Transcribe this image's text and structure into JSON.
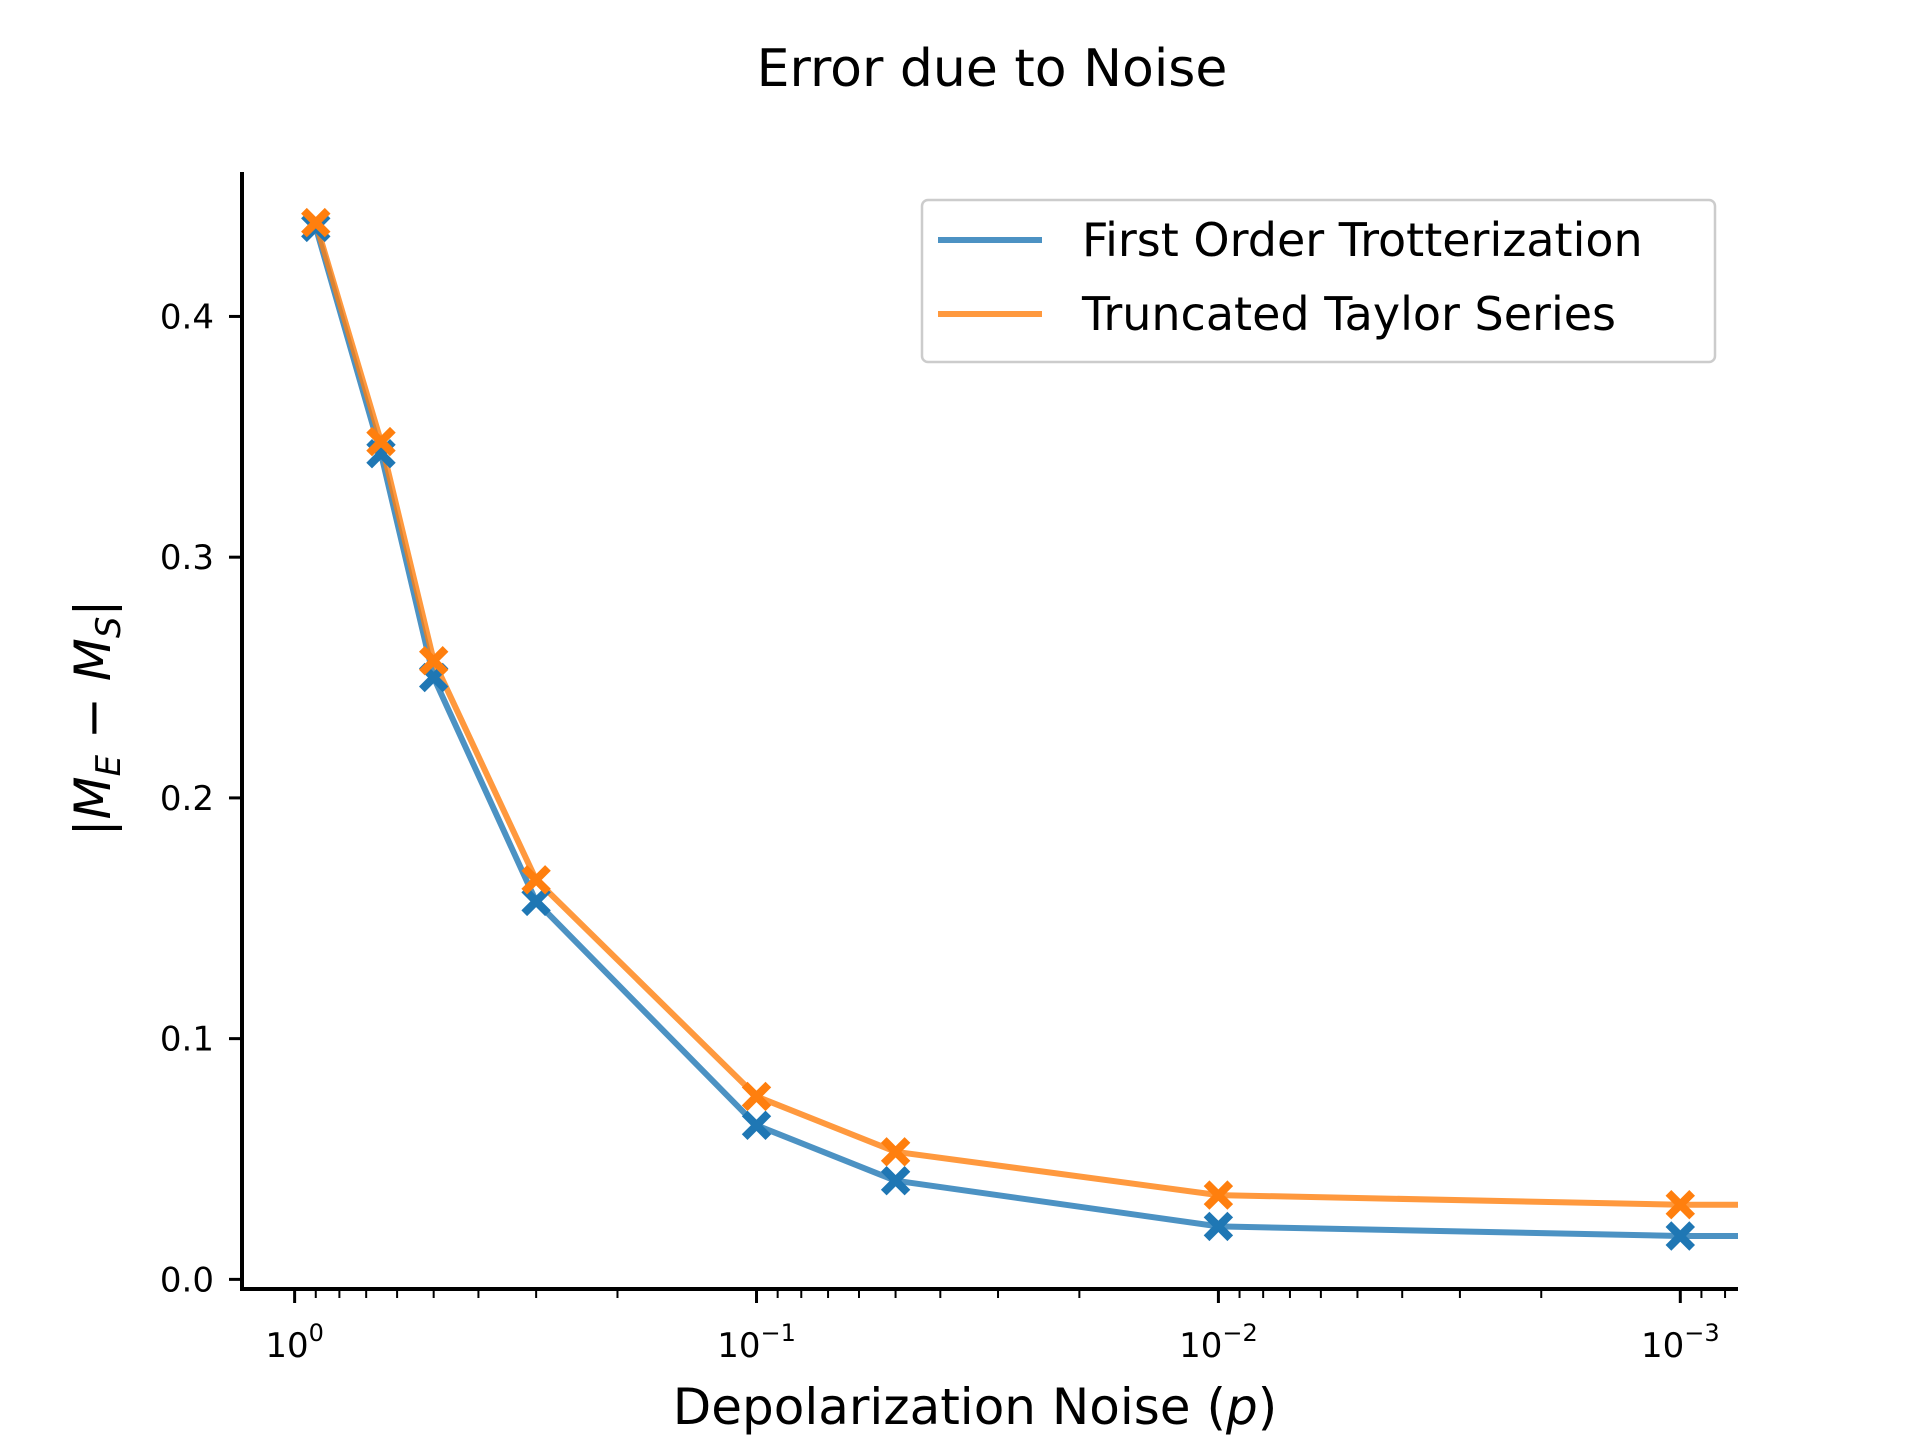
{
  "chart_data": {
    "type": "line",
    "title": "Error due to Noise",
    "xlabel": "Depolarization Noise (p)",
    "xlabel_parts": [
      "Depolarization Noise (",
      "p",
      ")"
    ],
    "ylabel": "|M_E − M_S|",
    "ylabel_parts": {
      "bar_left": "|",
      "m1": "M",
      "sub1": "E",
      "minus": " − ",
      "m2": "M",
      "sub2": "S",
      "bar_right": "|"
    },
    "x_scale": "log",
    "x_inverted": true,
    "xlim": [
      1.3,
      0.00075
    ],
    "ylim": [
      -0.004,
      0.46
    ],
    "x_ticks": [
      {
        "value": 1,
        "base": "10",
        "exp": "0"
      },
      {
        "value": 0.1,
        "base": "10",
        "exp": "−1"
      },
      {
        "value": 0.01,
        "base": "10",
        "exp": "−2"
      },
      {
        "value": 0.001,
        "base": "10",
        "exp": "−3"
      }
    ],
    "y_ticks": [
      {
        "value": 0.0,
        "label": "0.0"
      },
      {
        "value": 0.1,
        "label": "0.1"
      },
      {
        "value": 0.2,
        "label": "0.2"
      },
      {
        "value": 0.3,
        "label": "0.3"
      },
      {
        "value": 0.4,
        "label": "0.4"
      }
    ],
    "grid": false,
    "legend_position": "top-right",
    "marker": "X",
    "series": [
      {
        "name": "First Order Trotterization",
        "color": "#1f77b4",
        "x": [
          0.9,
          0.65,
          0.5,
          0.3,
          0.1,
          0.05,
          0.01,
          0.001,
          0.00075
        ],
        "y": [
          0.437,
          0.343,
          0.25,
          0.157,
          0.064,
          0.041,
          0.022,
          0.018,
          0.018
        ],
        "marker_points": 8
      },
      {
        "name": "Truncated Taylor Series",
        "color": "#ff7f0e",
        "x": [
          0.9,
          0.65,
          0.5,
          0.3,
          0.1,
          0.05,
          0.01,
          0.001,
          0.00075
        ],
        "y": [
          0.439,
          0.348,
          0.257,
          0.166,
          0.076,
          0.053,
          0.035,
          0.031,
          0.031
        ],
        "marker_points": 8
      }
    ]
  }
}
